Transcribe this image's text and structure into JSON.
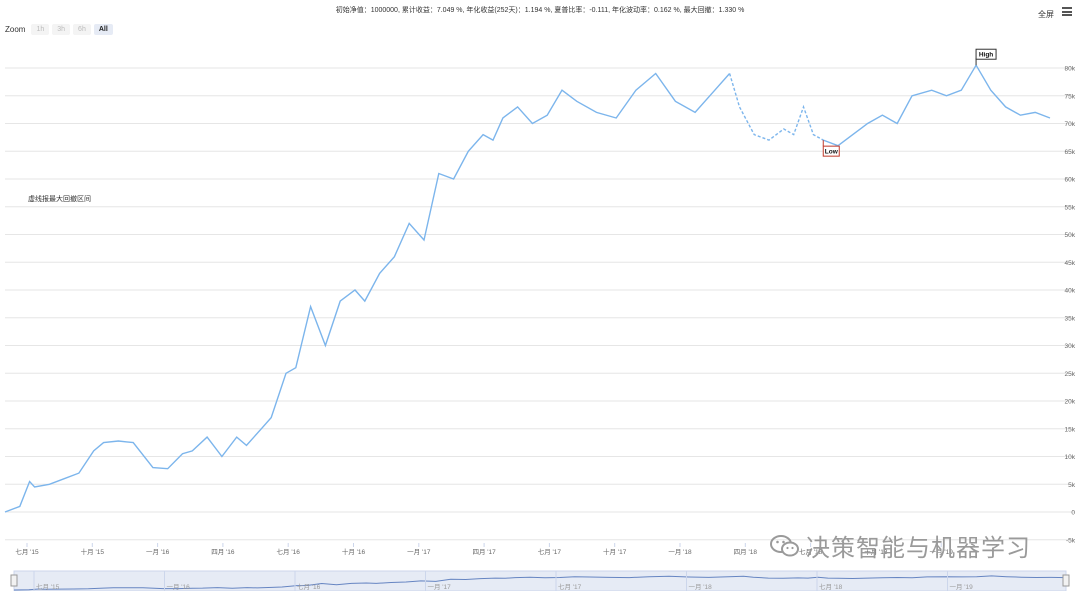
{
  "header": {
    "stats": "初始净值：1000000, 累计收益：7.049 %, 年化收益(252天)：1.194 %, 夏普比率：-0.111, 年化波动率：0.162 %, 最大回撤：1.330 %",
    "fullscreen_label": "全屏"
  },
  "zoom": {
    "label": "Zoom",
    "buttons": [
      "1h",
      "3h",
      "6h",
      "All"
    ],
    "active": "All"
  },
  "annotation": "虚线报最大回撤区间",
  "watermark": "决策智能与机器学习",
  "colors": {
    "line": "#7cb5ec",
    "grid": "#e6e6e6",
    "navigator_fill": "#e6ebf5",
    "flag_high": "#333333",
    "flag_low": "#c0392b"
  },
  "chart_data": {
    "type": "line",
    "x_ticks": [
      "七月 '15",
      "十月 '15",
      "一月 '16",
      "四月 '16",
      "七月 '16",
      "十月 '16",
      "一月 '17",
      "四月 '17",
      "七月 '17",
      "十月 '17",
      "一月 '18",
      "四月 '18",
      "七月 '18",
      "十月 '18",
      "一月 '19"
    ],
    "y_ticks": [
      "-5k",
      "0",
      "5k",
      "10k",
      "15k",
      "20k",
      "25k",
      "30k",
      "35k",
      "40k",
      "45k",
      "50k",
      "55k",
      "60k",
      "65k",
      "70k",
      "75k",
      "80k"
    ],
    "ylim": [
      -5000,
      85000
    ],
    "grid": true,
    "series": [
      {
        "x": [
          0,
          0.015,
          0.025,
          0.03,
          0.045,
          0.06,
          0.075,
          0.09,
          0.1,
          0.115,
          0.13,
          0.15,
          0.165,
          0.18,
          0.19,
          0.205,
          0.22,
          0.235,
          0.245,
          0.26,
          0.27,
          0.285,
          0.295,
          0.31,
          0.325,
          0.34,
          0.355,
          0.365,
          0.38,
          0.395,
          0.41,
          0.425,
          0.44,
          0.455,
          0.47,
          0.485,
          0.495,
          0.505,
          0.52,
          0.535,
          0.55,
          0.565,
          0.58,
          0.6,
          0.62,
          0.64,
          0.66,
          0.68,
          0.7,
          0.72,
          0.735
        ],
        "y": [
          0,
          1000,
          5500,
          4500,
          5000,
          6000,
          7000,
          11000,
          12500,
          12800,
          12500,
          8000,
          7800,
          10500,
          11000,
          13500,
          10000,
          13500,
          12000,
          15000,
          17000,
          25000,
          26000,
          37000,
          30000,
          38000,
          40000,
          38000,
          43000,
          46000,
          52000,
          49000,
          61000,
          60000,
          65000,
          68000,
          67000,
          71000,
          73000,
          70000,
          71500,
          76000,
          74000,
          72000,
          71000,
          76000,
          79000,
          74000,
          72000,
          76000,
          79000
        ]
      },
      {
        "x": [
          0.735,
          0.745,
          0.76,
          0.775,
          0.79,
          0.8,
          0.81,
          0.82,
          0.83
        ],
        "y": [
          79000,
          73000,
          68000,
          67000,
          69000,
          68000,
          73000,
          68000,
          67000
        ]
      },
      {
        "x": [
          0.83,
          0.845,
          0.86,
          0.875,
          0.89,
          0.905,
          0.92,
          0.94,
          0.955,
          0.97,
          0.985,
          1.0,
          1.015,
          1.03,
          1.045,
          1.06
        ],
        "y": [
          67000,
          66000,
          68000,
          70000,
          71500,
          70000,
          75000,
          76000,
          75000,
          76000,
          80500,
          76000,
          73000,
          71500,
          72000,
          71000
        ]
      }
    ],
    "flags": [
      {
        "label": "High",
        "x": 0.985,
        "y": 80500
      },
      {
        "label": "Low",
        "x": 0.83,
        "y": 67000
      }
    ]
  }
}
